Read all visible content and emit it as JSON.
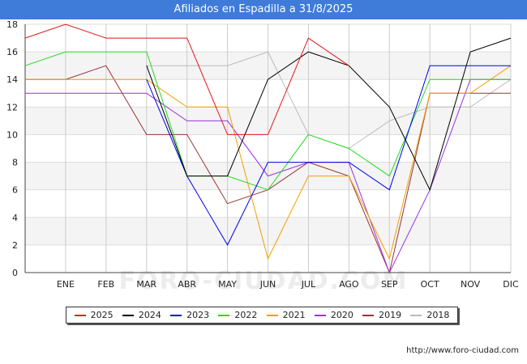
{
  "title": "Afiliados en Espadilla a 31/8/2025",
  "source": "http://www.foro-ciudad.com",
  "watermark": "FORO-CIUDAD.COM",
  "chart_data": {
    "type": "line",
    "title": "Afiliados en Espadilla a 31/8/2025",
    "categories": [
      "",
      "ENE",
      "FEB",
      "MAR",
      "ABR",
      "MAY",
      "JUN",
      "JUL",
      "AGO",
      "SEP",
      "OCT",
      "NOV",
      "DIC"
    ],
    "ylim": [
      0,
      18
    ],
    "yticks": [
      0,
      2,
      4,
      6,
      8,
      10,
      12,
      14,
      16,
      18
    ],
    "grid": true,
    "legend_position": "bottom",
    "series": [
      {
        "name": "2025",
        "color": "#e8141a",
        "values": [
          17,
          18,
          17,
          17,
          17,
          10,
          10,
          17,
          15,
          null,
          null,
          null,
          null
        ]
      },
      {
        "name": "2024",
        "color": "#000000",
        "values": [
          null,
          null,
          null,
          15,
          7,
          7,
          14,
          16,
          15,
          12,
          6,
          16,
          17
        ]
      },
      {
        "name": "2023",
        "color": "#0000ee",
        "values": [
          null,
          null,
          null,
          14,
          7,
          2,
          8,
          8,
          8,
          6,
          15,
          15,
          15
        ]
      },
      {
        "name": "2022",
        "color": "#22dd22",
        "values": [
          15,
          16,
          16,
          16,
          7,
          7,
          6,
          10,
          9,
          7,
          14,
          14,
          14
        ]
      },
      {
        "name": "2021",
        "color": "#f0a000",
        "values": [
          14,
          14,
          14,
          14,
          12,
          12,
          1,
          7,
          7,
          1,
          13,
          13,
          15
        ]
      },
      {
        "name": "2020",
        "color": "#9933dd",
        "values": [
          13,
          13,
          13,
          13,
          11,
          11,
          7,
          8,
          8,
          0,
          6,
          14,
          14
        ]
      },
      {
        "name": "2019",
        "color": "#993333",
        "values": [
          14,
          14,
          15,
          10,
          10,
          5,
          6,
          8,
          7,
          0,
          13,
          13,
          13
        ]
      },
      {
        "name": "2018",
        "color": "#bbbbbb",
        "values": [
          null,
          null,
          null,
          15,
          15,
          15,
          16,
          10,
          9,
          11,
          12,
          12,
          14
        ]
      }
    ]
  }
}
